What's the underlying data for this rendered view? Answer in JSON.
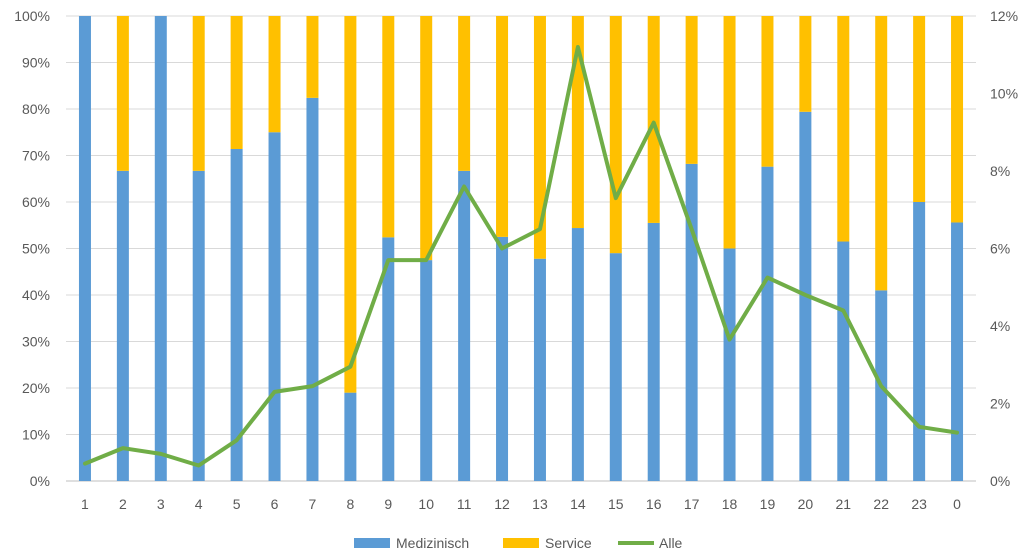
{
  "chart_data": {
    "type": "bar",
    "stacked_percent": true,
    "categories": [
      "1",
      "2",
      "3",
      "4",
      "5",
      "6",
      "7",
      "8",
      "9",
      "10",
      "11",
      "12",
      "13",
      "14",
      "15",
      "16",
      "17",
      "18",
      "19",
      "20",
      "21",
      "22",
      "23",
      "0"
    ],
    "series": [
      {
        "name": "Medizinisch",
        "type": "bar",
        "axis": "left",
        "color": "#5B9BD5",
        "values": [
          100,
          66.7,
          100,
          66.7,
          71.4,
          75,
          82.4,
          19,
          52.4,
          47.5,
          66.7,
          52.5,
          47.8,
          54.4,
          49,
          55.5,
          68.2,
          50,
          67.6,
          79.4,
          51.5,
          41,
          60,
          55.6
        ]
      },
      {
        "name": "Service",
        "type": "bar",
        "axis": "left",
        "color": "#FFC000",
        "values": [
          0,
          33.3,
          0,
          33.3,
          28.6,
          25,
          17.6,
          81,
          47.6,
          52.5,
          33.3,
          47.5,
          52.2,
          45.6,
          51,
          44.5,
          31.8,
          50,
          32.4,
          20.6,
          48.5,
          59,
          40,
          44.4
        ]
      },
      {
        "name": "Alle",
        "type": "line",
        "axis": "right",
        "color": "#70AD47",
        "values": [
          0.45,
          0.85,
          0.7,
          0.4,
          1.05,
          2.3,
          2.45,
          2.95,
          5.7,
          5.7,
          7.6,
          6.0,
          6.5,
          11.2,
          7.3,
          9.25,
          6.5,
          3.65,
          5.25,
          4.8,
          4.4,
          2.45,
          1.4,
          1.25
        ]
      }
    ],
    "y_left": {
      "ticks": [
        "0%",
        "10%",
        "20%",
        "30%",
        "40%",
        "50%",
        "60%",
        "70%",
        "80%",
        "90%",
        "100%"
      ],
      "ylim": [
        0,
        100
      ]
    },
    "y_right": {
      "ticks": [
        "0%",
        "2%",
        "4%",
        "6%",
        "8%",
        "10%",
        "12%"
      ],
      "ylim": [
        0,
        12
      ]
    },
    "grid": true,
    "legend": {
      "position": "bottom",
      "labels": [
        "Medizinisch",
        "Service",
        "Alle"
      ]
    }
  }
}
